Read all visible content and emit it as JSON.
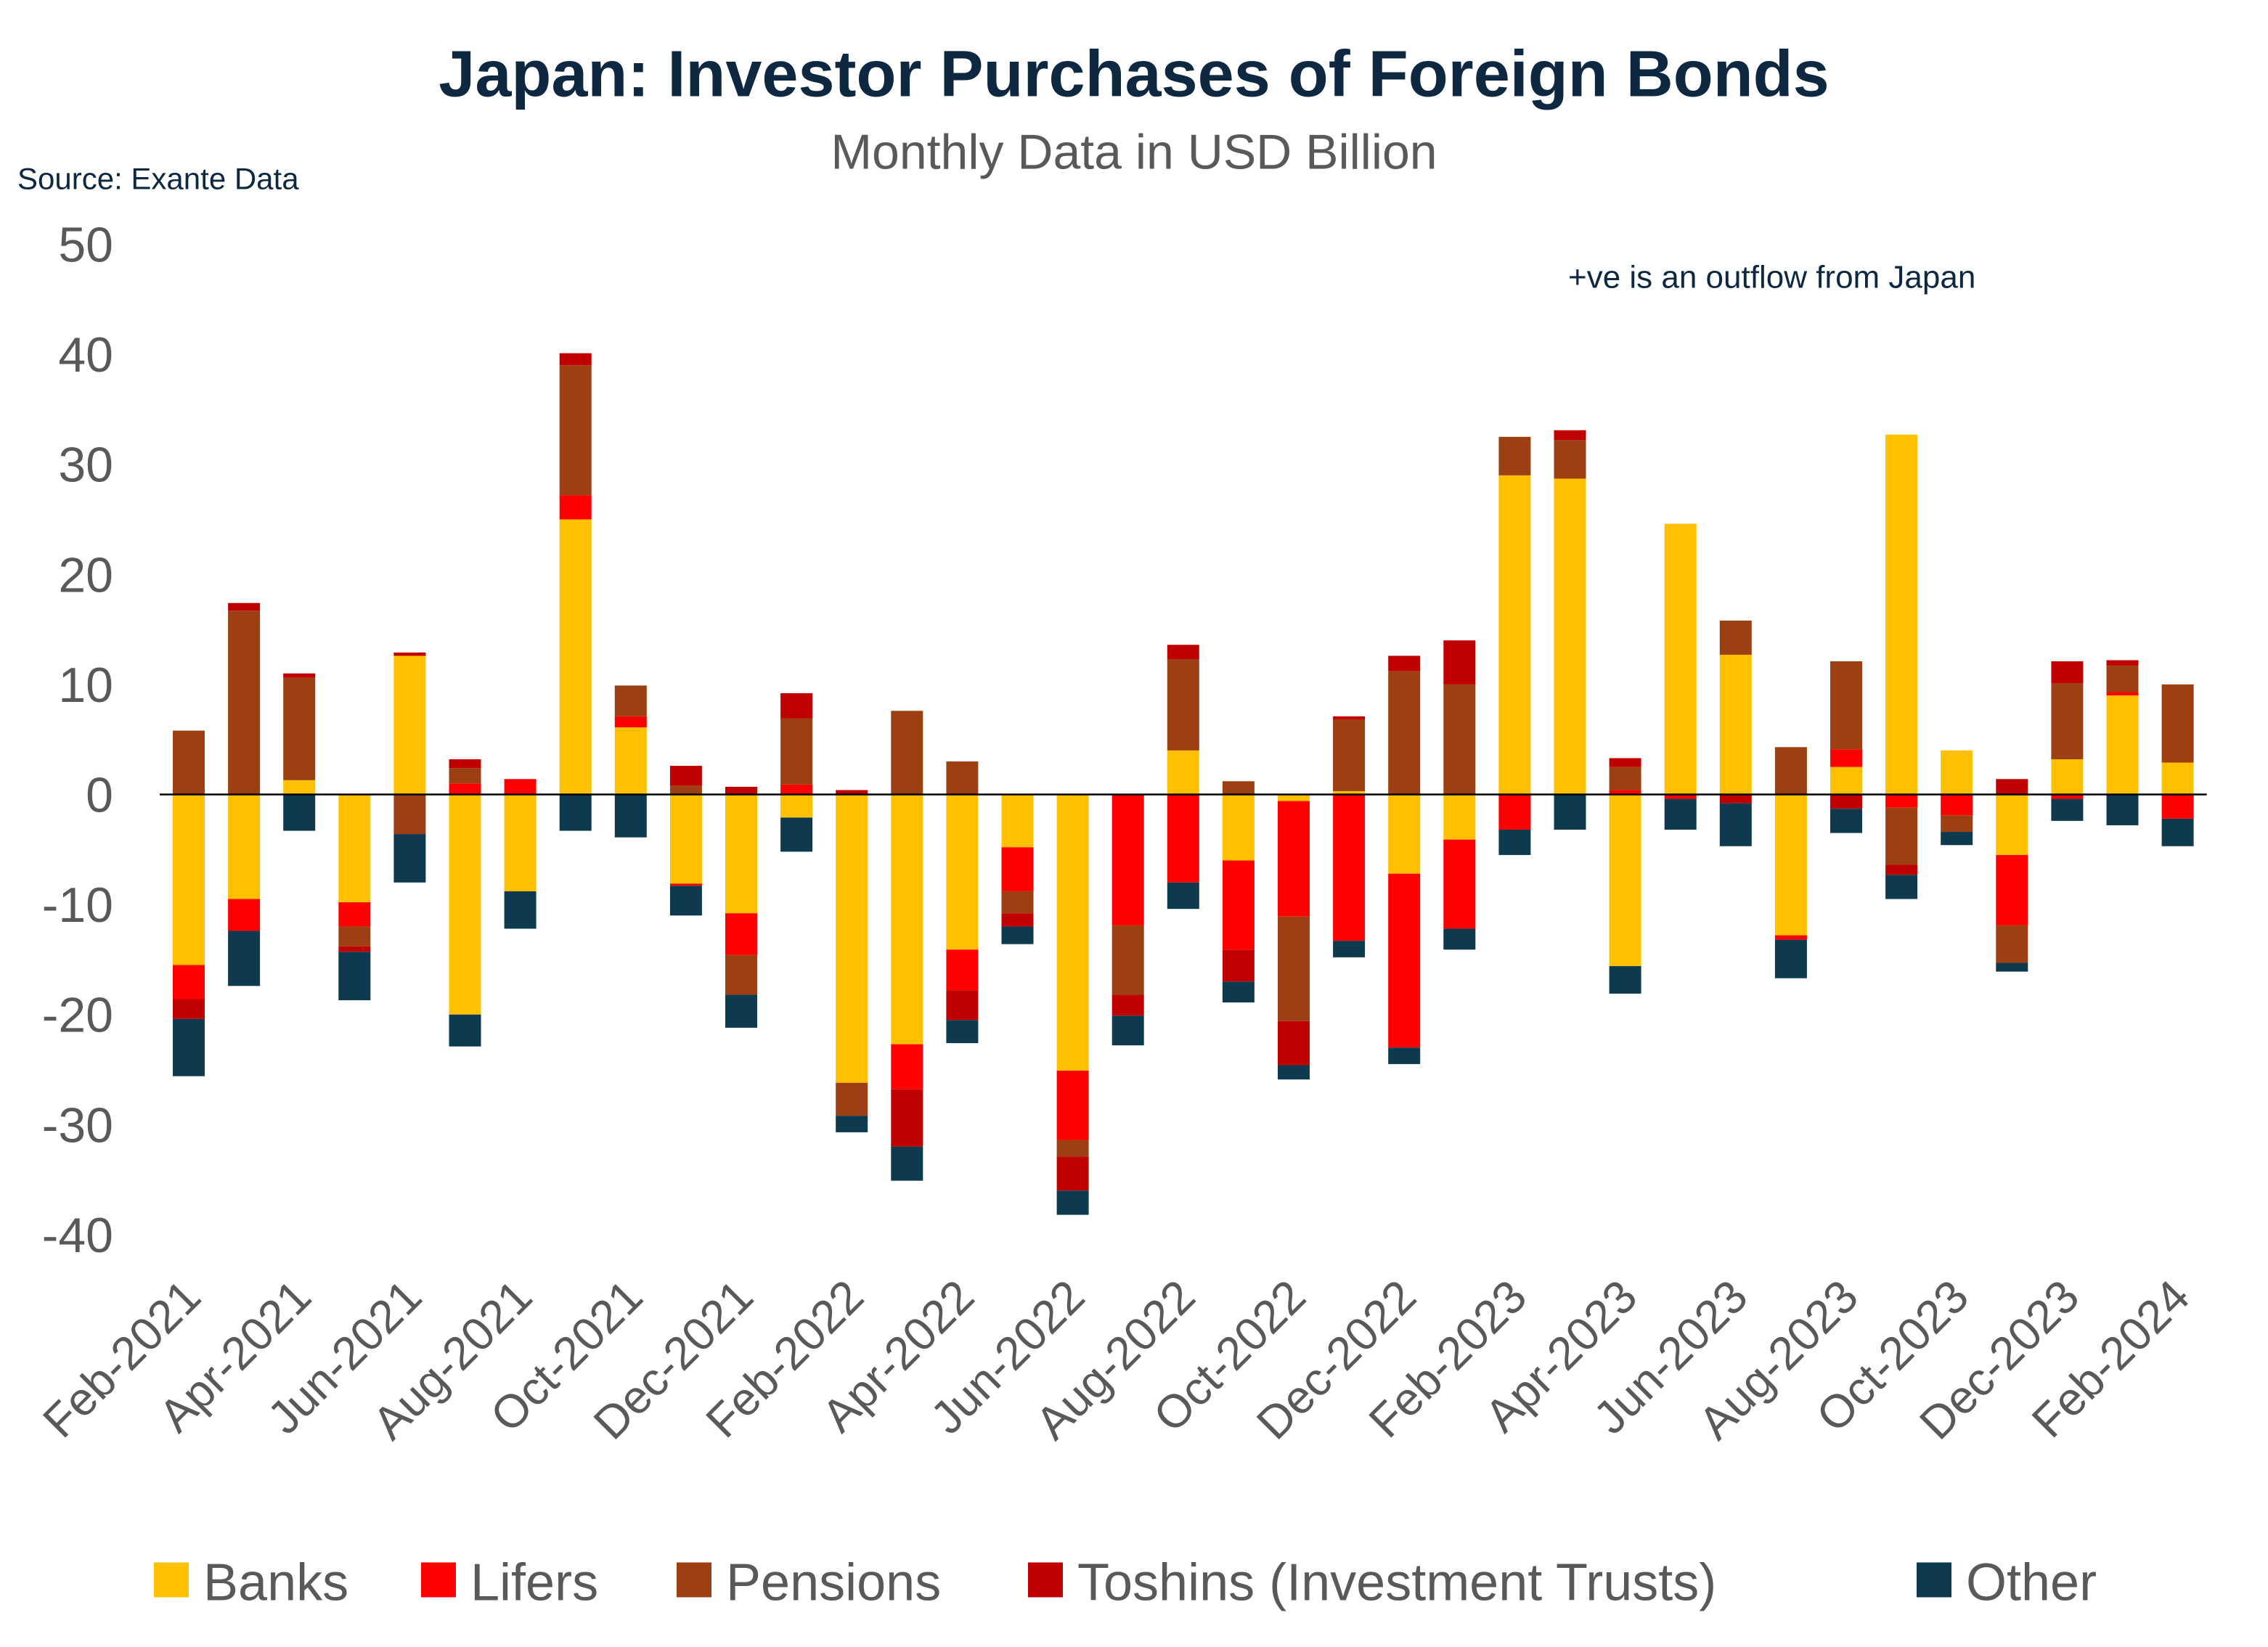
{
  "chart_data": {
    "type": "bar",
    "stacked": true,
    "title": "Japan: Investor Purchases of Foreign Bonds",
    "subtitle": "Monthly Data in USD Billion",
    "source": "Source: Exante Data",
    "annotation": "+ve  is an outflow from Japan",
    "xlabel": "",
    "ylabel": "",
    "ylim": [
      -40,
      50
    ],
    "yticks": [
      50,
      40,
      30,
      20,
      10,
      0,
      -10,
      -20,
      -30,
      -40
    ],
    "grid": false,
    "legend_position": "bottom",
    "categories": [
      "Feb-2021",
      "Mar-2021",
      "Apr-2021",
      "May-2021",
      "Jun-2021",
      "Jul-2021",
      "Aug-2021",
      "Sep-2021",
      "Oct-2021",
      "Nov-2021",
      "Dec-2021",
      "Jan-2022",
      "Feb-2022",
      "Mar-2022",
      "Apr-2022",
      "May-2022",
      "Jun-2022",
      "Jul-2022",
      "Aug-2022",
      "Sep-2022",
      "Oct-2022",
      "Nov-2022",
      "Dec-2022",
      "Jan-2023",
      "Feb-2023",
      "Mar-2023",
      "Apr-2023",
      "May-2023",
      "Jun-2023",
      "Jul-2023",
      "Aug-2023",
      "Sep-2023",
      "Oct-2023",
      "Nov-2023",
      "Dec-2023",
      "Jan-2024",
      "Feb-2024"
    ],
    "tick_labels": [
      "Feb-2021",
      "Apr-2021",
      "Jun-2021",
      "Aug-2021",
      "Oct-2021",
      "Dec-2021",
      "Feb-2022",
      "Apr-2022",
      "Jun-2022",
      "Aug-2022",
      "Oct-2022",
      "Dec-2022",
      "Feb-2023",
      "Apr-2023",
      "Jun-2023",
      "Aug-2023",
      "Oct-2023",
      "Dec-2023",
      "Feb-2024"
    ],
    "series": [
      {
        "name": "Banks",
        "color": "#FFC000",
        "values": [
          -15.5,
          -9.5,
          1.3,
          -9.8,
          12.6,
          -20,
          -8.8,
          25,
          6.1,
          -8.1,
          -10.8,
          -2.1,
          -26.2,
          -22.7,
          -14.1,
          -4.8,
          -25.1,
          0,
          4.0,
          -6,
          -0.6,
          0.3,
          -7.2,
          -4.1,
          29,
          28.7,
          -15.6,
          24.6,
          12.7,
          -12.8,
          2.5,
          32.7,
          4.0,
          -5.5,
          3.2,
          9.0,
          2.9
        ]
      },
      {
        "name": "Lifers",
        "color": "#FF0000",
        "values": [
          -3.1,
          -2.9,
          0,
          -2.2,
          0,
          1.0,
          1.4,
          2.2,
          1.0,
          -0.2,
          -3.8,
          0.9,
          0,
          -4.1,
          -3.7,
          -4.0,
          -6.3,
          -11.9,
          -8.0,
          -8.1,
          -10.5,
          -13.3,
          -15.8,
          -8.1,
          -3.2,
          0,
          0.4,
          -0.4,
          0,
          -0.4,
          1.6,
          -1.2,
          -1.9,
          -6.4,
          -0.4,
          0.3,
          -2.2
        ]
      },
      {
        "name": "Pensions",
        "color": "#9C3F12",
        "values": [
          5.8,
          16.7,
          9.3,
          -1.8,
          -3.6,
          1.4,
          0,
          11.8,
          2.8,
          0.8,
          -3.6,
          6.0,
          -3.0,
          7.6,
          3.0,
          -2.0,
          -1.5,
          -6.3,
          8.3,
          1.2,
          -9.5,
          6.5,
          11.2,
          10,
          3.5,
          3.5,
          2.1,
          0,
          3.1,
          4.3,
          8.0,
          -5.2,
          -1.5,
          -3.4,
          6.9,
          2.4,
          7.1
        ]
      },
      {
        "name": "Toshins (Investment Trusts)",
        "color": "#C00000",
        "values": [
          -1.8,
          0.7,
          0.4,
          -0.5,
          0.3,
          0.8,
          0,
          1.1,
          0,
          1.8,
          0.7,
          2.3,
          0.4,
          -5.2,
          -2.7,
          -1.2,
          -3.1,
          -1.9,
          1.3,
          -2.9,
          -4,
          0.3,
          1.4,
          4,
          0,
          0.9,
          0.8,
          0,
          -0.8,
          0,
          -1.3,
          -0.9,
          0,
          1.4,
          2.0,
          0.5,
          0
        ]
      },
      {
        "name": "Other",
        "color": "#0E3A4F",
        "values": [
          -5.2,
          -5.0,
          -3.3,
          -4.4,
          -4.4,
          -2.9,
          -3.4,
          -3.3,
          -3.9,
          -2.7,
          -3.0,
          -3.1,
          -1.5,
          -3.1,
          -2.1,
          -1.6,
          -2.2,
          -2.7,
          -2.4,
          -1.9,
          -1.3,
          -1.5,
          -1.5,
          -1.9,
          -2.3,
          -3.2,
          -2.5,
          -2.8,
          -3.9,
          -3.5,
          -2.2,
          -2.2,
          -1.2,
          -0.8,
          -2.0,
          -2.8,
          -2.5
        ]
      }
    ]
  },
  "colors": {
    "title": "#0E2841",
    "subtitle": "#595959",
    "axis_text": "#595959"
  }
}
